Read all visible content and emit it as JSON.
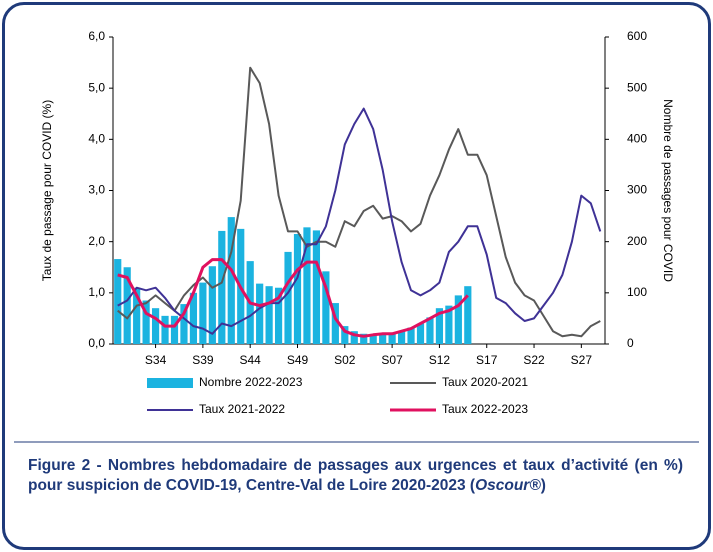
{
  "chart_data": {
    "type": "combo",
    "y_axis_label": "Taux de passage pour COVID (%)",
    "y2_axis_label": "Nombre de passages pour COVID",
    "categories": [
      null,
      null,
      null,
      null,
      "S34",
      null,
      null,
      null,
      null,
      "S39",
      null,
      null,
      null,
      null,
      "S44",
      null,
      null,
      null,
      null,
      "S49",
      null,
      null,
      null,
      null,
      "S02",
      null,
      null,
      null,
      null,
      "S07",
      null,
      null,
      null,
      null,
      "S12",
      null,
      null,
      null,
      null,
      "S17",
      null,
      null,
      null,
      null,
      "S22",
      null,
      null,
      null,
      null,
      "S27",
      null,
      null
    ],
    "ylim": [
      0,
      6
    ],
    "yticks": [
      {
        "value": 0,
        "label": "0,0"
      },
      {
        "value": 1,
        "label": "1,0"
      },
      {
        "value": 2,
        "label": "2,0"
      },
      {
        "value": 3,
        "label": "3,0"
      },
      {
        "value": 4,
        "label": "4,0"
      },
      {
        "value": 5,
        "label": "5,0"
      },
      {
        "value": 6,
        "label": "6,0"
      }
    ],
    "y2lim": [
      0,
      600
    ],
    "y2ticks": [
      0,
      100,
      200,
      300,
      400,
      500,
      600
    ],
    "series": [
      {
        "name": "Nombre 2022-2023",
        "type": "bar",
        "axis": "y2",
        "color": "#1bb3e0",
        "values": [
          166,
          150,
          110,
          85,
          70,
          55,
          55,
          78,
          100,
          120,
          152,
          221,
          248,
          225,
          162,
          118,
          113,
          110,
          180,
          215,
          228,
          222,
          142,
          80,
          35,
          25,
          20,
          18,
          20,
          22,
          25,
          32,
          40,
          52,
          70,
          75,
          95,
          113,
          null,
          null,
          null,
          null,
          null,
          null,
          null,
          null,
          null,
          null,
          null,
          null,
          null,
          null
        ]
      },
      {
        "name": "Taux 2020-2021",
        "type": "line",
        "color": "#595959",
        "values": [
          0.65,
          0.5,
          0.75,
          0.8,
          0.95,
          0.8,
          0.65,
          0.95,
          1.15,
          1.3,
          1.1,
          1.2,
          1.8,
          2.8,
          5.4,
          5.1,
          4.3,
          2.9,
          2.2,
          2.2,
          1.9,
          2.0,
          2.0,
          1.9,
          2.4,
          2.3,
          2.6,
          2.7,
          2.45,
          2.5,
          2.4,
          2.2,
          2.35,
          2.9,
          3.3,
          3.8,
          4.2,
          3.7,
          3.7,
          3.3,
          2.5,
          1.7,
          1.2,
          0.95,
          0.85,
          0.55,
          0.25,
          0.15,
          0.18,
          0.15,
          0.35,
          0.45
        ]
      },
      {
        "name": "Taux 2021-2022",
        "type": "line",
        "color": "#3f3296",
        "values": [
          0.75,
          0.85,
          1.1,
          1.05,
          1.1,
          0.9,
          0.65,
          0.5,
          0.35,
          0.3,
          0.2,
          0.4,
          0.35,
          0.45,
          0.55,
          0.7,
          0.8,
          0.8,
          1.0,
          1.3,
          1.95,
          1.95,
          2.3,
          3.0,
          3.9,
          4.3,
          4.6,
          4.2,
          3.4,
          2.4,
          1.6,
          1.05,
          0.95,
          1.05,
          1.2,
          1.8,
          2.0,
          2.3,
          2.3,
          1.75,
          0.9,
          0.8,
          0.6,
          0.45,
          0.5,
          0.75,
          1.0,
          1.35,
          2.0,
          2.9,
          2.75,
          2.2
        ]
      },
      {
        "name": "Taux 2022-2023",
        "type": "line",
        "color": "#e0115f",
        "width": 3,
        "values": [
          1.35,
          1.3,
          0.95,
          0.6,
          0.5,
          0.35,
          0.35,
          0.6,
          1.0,
          1.5,
          1.65,
          1.65,
          1.45,
          1.1,
          0.8,
          0.75,
          0.8,
          0.9,
          1.2,
          1.45,
          1.6,
          1.6,
          1.1,
          0.5,
          0.25,
          0.18,
          0.15,
          0.18,
          0.2,
          0.2,
          0.25,
          0.3,
          0.4,
          0.5,
          0.6,
          0.65,
          0.75,
          0.95,
          null,
          null,
          null,
          null,
          null,
          null,
          null,
          null,
          null,
          null,
          null,
          null,
          null,
          null
        ]
      }
    ]
  },
  "caption": {
    "text": "Figure 2 - Nombres hebdomadaire de passages aux urgences et taux d’activité (en %) pour suspicion de COVID-19, Centre-Val de Loire 2020-2023 (",
    "source": "Oscour®",
    "end": ")"
  }
}
